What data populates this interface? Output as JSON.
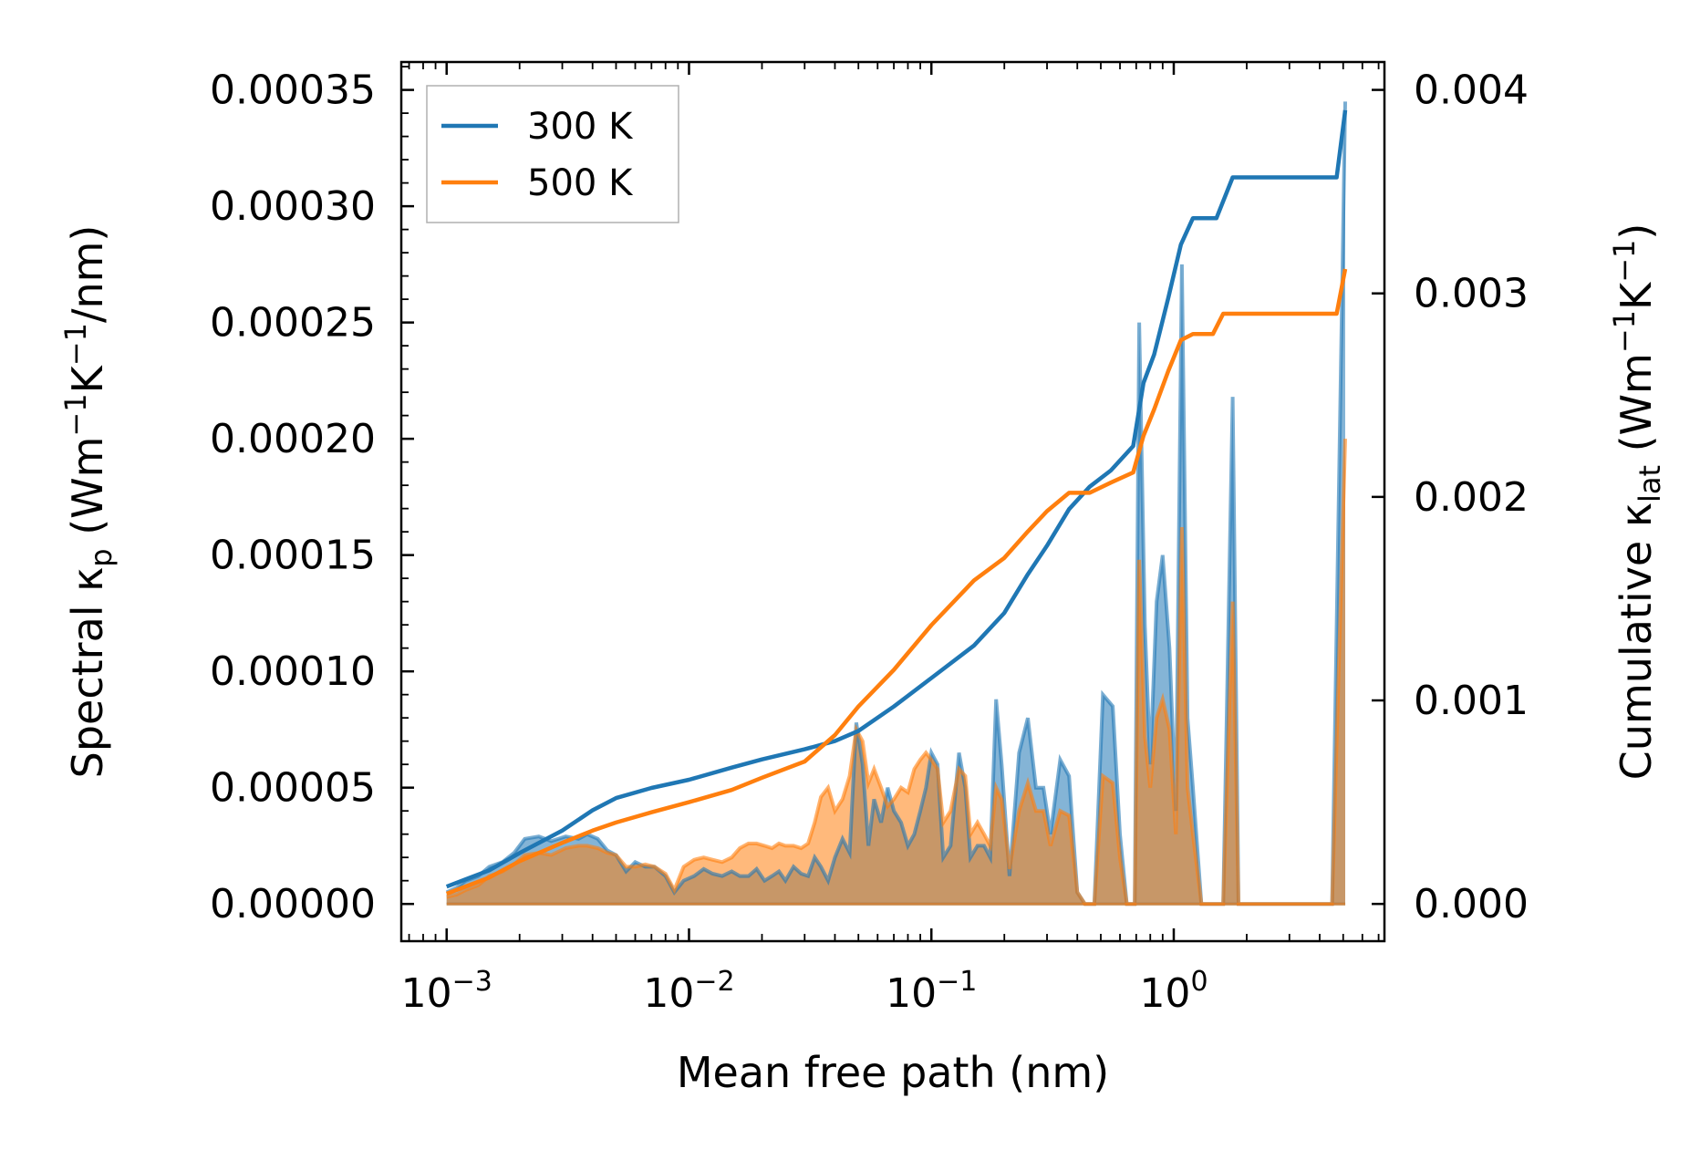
{
  "chart_data": {
    "type": "line+area",
    "xlabel": "Mean free path (nm)",
    "ylabel_left_prefix": "Spectral κ",
    "ylabel_left_sub": "p",
    "ylabel_left_units_parts": [
      " (Wm",
      "−1",
      "K",
      "−1",
      "/nm)"
    ],
    "ylabel_right_prefix": "Cumulative κ",
    "ylabel_right_sub": "lat",
    "ylabel_right_units_parts": [
      " (Wm",
      "−1",
      "K",
      "−1",
      ")"
    ],
    "x_scale": "log",
    "xlim": [
      0.00065,
      7.4
    ],
    "ylim_left": [
      -1.6e-05,
      0.000362
    ],
    "ylim_right": [
      -0.000183,
      0.004137
    ],
    "x_ticks": [
      {
        "value": 0.001,
        "base": "10",
        "exp": "−3"
      },
      {
        "value": 0.01,
        "base": "10",
        "exp": "−2"
      },
      {
        "value": 0.1,
        "base": "10",
        "exp": "−1"
      },
      {
        "value": 1,
        "base": "10",
        "exp": "0"
      }
    ],
    "y_left_ticks": [
      {
        "value": 0,
        "label": "0.00000"
      },
      {
        "value": 5e-05,
        "label": "0.00005"
      },
      {
        "value": 0.0001,
        "label": "0.00010"
      },
      {
        "value": 0.00015,
        "label": "0.00015"
      },
      {
        "value": 0.0002,
        "label": "0.00020"
      },
      {
        "value": 0.00025,
        "label": "0.00025"
      },
      {
        "value": 0.0003,
        "label": "0.00030"
      },
      {
        "value": 0.00035,
        "label": "0.00035"
      }
    ],
    "y_right_ticks": [
      {
        "value": 0,
        "label": "0.000"
      },
      {
        "value": 0.001,
        "label": "0.001"
      },
      {
        "value": 0.002,
        "label": "0.002"
      },
      {
        "value": 0.003,
        "label": "0.003"
      },
      {
        "value": 0.004,
        "label": "0.004"
      }
    ],
    "legend": {
      "position": "upper-left",
      "entries": [
        {
          "label": "300 K",
          "color": "#1f77b4"
        },
        {
          "label": "500 K",
          "color": "#ff7f0e"
        }
      ]
    },
    "series": [
      {
        "name": "300 K",
        "color": "#1f77b4",
        "spectral": [
          [
            0.001,
            5e-06
          ],
          [
            0.0011,
            7e-06
          ],
          [
            0.0012,
            1e-05
          ],
          [
            0.00135,
            1.2e-05
          ],
          [
            0.0015,
            1.6e-05
          ],
          [
            0.0017,
            1.8e-05
          ],
          [
            0.0019,
            2.2e-05
          ],
          [
            0.0021,
            2.8e-05
          ],
          [
            0.0024,
            2.9e-05
          ],
          [
            0.0027,
            2.7e-05
          ],
          [
            0.0031,
            2.9e-05
          ],
          [
            0.0035,
            2.8e-05
          ],
          [
            0.0038,
            3e-05
          ],
          [
            0.0042,
            2.8e-05
          ],
          [
            0.0046,
            2.3e-05
          ],
          [
            0.005,
            2.1e-05
          ],
          [
            0.0055,
            1.4e-05
          ],
          [
            0.006,
            1.8e-05
          ],
          [
            0.0066,
            1.6e-05
          ],
          [
            0.0072,
            1.6e-05
          ],
          [
            0.008,
            1.2e-05
          ],
          [
            0.0087,
            5e-06
          ],
          [
            0.0095,
            1e-05
          ],
          [
            0.0105,
            1.2e-05
          ],
          [
            0.0115,
            1.5e-05
          ],
          [
            0.0125,
            1.3e-05
          ],
          [
            0.0137,
            1.2e-05
          ],
          [
            0.015,
            1.4e-05
          ],
          [
            0.0162,
            1.2e-05
          ],
          [
            0.0176,
            1.2e-05
          ],
          [
            0.019,
            1.5e-05
          ],
          [
            0.0205,
            1e-05
          ],
          [
            0.022,
            1.2e-05
          ],
          [
            0.0235,
            1.4e-05
          ],
          [
            0.025,
            1e-05
          ],
          [
            0.027,
            1.6e-05
          ],
          [
            0.029,
            1.3e-05
          ],
          [
            0.031,
            1.2e-05
          ],
          [
            0.033,
            2e-05
          ],
          [
            0.035,
            1.6e-05
          ],
          [
            0.0375,
            1e-05
          ],
          [
            0.04,
            2e-05
          ],
          [
            0.043,
            2.8e-05
          ],
          [
            0.046,
            2.2e-05
          ],
          [
            0.049,
            7.8e-05
          ],
          [
            0.052,
            6e-05
          ],
          [
            0.055,
            2.5e-05
          ],
          [
            0.058,
            4.5e-05
          ],
          [
            0.062,
            3.5e-05
          ],
          [
            0.066,
            5e-05
          ],
          [
            0.07,
            4e-05
          ],
          [
            0.075,
            3.5e-05
          ],
          [
            0.08,
            2.5e-05
          ],
          [
            0.085,
            3e-05
          ],
          [
            0.09,
            4e-05
          ],
          [
            0.095,
            5e-05
          ],
          [
            0.1,
            6.5e-05
          ],
          [
            0.106,
            6e-05
          ],
          [
            0.112,
            2e-05
          ],
          [
            0.12,
            2.5e-05
          ],
          [
            0.13,
            6.5e-05
          ],
          [
            0.138,
            5e-05
          ],
          [
            0.145,
            2e-05
          ],
          [
            0.155,
            2.5e-05
          ],
          [
            0.165,
            2.5e-05
          ],
          [
            0.175,
            2e-05
          ],
          [
            0.185,
            8.8e-05
          ],
          [
            0.195,
            6e-05
          ],
          [
            0.21,
            1.2e-05
          ],
          [
            0.23,
            6.5e-05
          ],
          [
            0.25,
            8e-05
          ],
          [
            0.27,
            5e-05
          ],
          [
            0.29,
            5e-05
          ],
          [
            0.31,
            3e-05
          ],
          [
            0.34,
            6.2e-05
          ],
          [
            0.37,
            5.5e-05
          ],
          [
            0.4,
            5e-06
          ],
          [
            0.43,
            0.0
          ],
          [
            0.47,
            0.0
          ],
          [
            0.51,
            9e-05
          ],
          [
            0.56,
            8.5e-05
          ],
          [
            0.6,
            3e-05
          ],
          [
            0.64,
            0.0
          ],
          [
            0.69,
            0.0
          ],
          [
            0.72,
            0.00025
          ],
          [
            0.76,
            0.00012
          ],
          [
            0.8,
            6e-05
          ],
          [
            0.85,
            0.00013
          ],
          [
            0.9,
            0.00015
          ],
          [
            0.96,
            0.00011
          ],
          [
            1.02,
            4e-05
          ],
          [
            1.08,
            0.000275
          ],
          [
            1.14,
            8e-05
          ],
          [
            1.2,
            5e-05
          ],
          [
            1.3,
            0.0
          ],
          [
            1.5,
            0.0
          ],
          [
            1.6,
            0.0
          ],
          [
            1.75,
            0.000218
          ],
          [
            1.85,
            0.0
          ],
          [
            2.2,
            0.0
          ],
          [
            4.5,
            0.0
          ],
          [
            5.1,
            0.000345
          ]
        ],
        "cumulative": [
          [
            0.001,
            8.5e-05
          ],
          [
            0.0015,
            0.000165
          ],
          [
            0.002,
            0.00025
          ],
          [
            0.003,
            0.00036
          ],
          [
            0.004,
            0.00046
          ],
          [
            0.005,
            0.00052
          ],
          [
            0.007,
            0.00057
          ],
          [
            0.01,
            0.00061
          ],
          [
            0.015,
            0.00067
          ],
          [
            0.02,
            0.00071
          ],
          [
            0.03,
            0.00076
          ],
          [
            0.04,
            0.0008
          ],
          [
            0.05,
            0.00085
          ],
          [
            0.07,
            0.00097
          ],
          [
            0.1,
            0.00111
          ],
          [
            0.15,
            0.00127
          ],
          [
            0.2,
            0.00143
          ],
          [
            0.25,
            0.00162
          ],
          [
            0.3,
            0.00176
          ],
          [
            0.37,
            0.00194
          ],
          [
            0.45,
            0.00205
          ],
          [
            0.55,
            0.00213
          ],
          [
            0.68,
            0.00225
          ],
          [
            0.75,
            0.00256
          ],
          [
            0.83,
            0.0027
          ],
          [
            0.95,
            0.00298
          ],
          [
            1.07,
            0.00324
          ],
          [
            1.2,
            0.00337
          ],
          [
            1.5,
            0.00337
          ],
          [
            1.75,
            0.00357
          ],
          [
            2.5,
            0.00357
          ],
          [
            4.7,
            0.00357
          ],
          [
            5.1,
            0.0039
          ]
        ]
      },
      {
        "name": "500 K",
        "color": "#ff7f0e",
        "spectral": [
          [
            0.001,
            3e-06
          ],
          [
            0.0011,
            4e-06
          ],
          [
            0.0012,
            6e-06
          ],
          [
            0.00135,
            8e-06
          ],
          [
            0.0015,
            1.2e-05
          ],
          [
            0.0017,
            1.4e-05
          ],
          [
            0.0019,
            1.7e-05
          ],
          [
            0.0021,
            2.1e-05
          ],
          [
            0.0024,
            2.2e-05
          ],
          [
            0.0027,
            2.1e-05
          ],
          [
            0.0031,
            2.4e-05
          ],
          [
            0.0035,
            2.5e-05
          ],
          [
            0.0038,
            2.5e-05
          ],
          [
            0.0042,
            2.4e-05
          ],
          [
            0.0046,
            2.2e-05
          ],
          [
            0.005,
            2.1e-05
          ],
          [
            0.0055,
            1.6e-05
          ],
          [
            0.006,
            1.6e-05
          ],
          [
            0.0066,
            1.7e-05
          ],
          [
            0.0072,
            1.6e-05
          ],
          [
            0.008,
            1.3e-05
          ],
          [
            0.0087,
            6e-06
          ],
          [
            0.0095,
            1.6e-05
          ],
          [
            0.0105,
            1.9e-05
          ],
          [
            0.0115,
            2e-05
          ],
          [
            0.0125,
            1.9e-05
          ],
          [
            0.0137,
            1.8e-05
          ],
          [
            0.015,
            2e-05
          ],
          [
            0.0162,
            2.4e-05
          ],
          [
            0.0176,
            2.6e-05
          ],
          [
            0.019,
            2.6e-05
          ],
          [
            0.0205,
            2.5e-05
          ],
          [
            0.022,
            2.4e-05
          ],
          [
            0.0235,
            2.6e-05
          ],
          [
            0.025,
            2.5e-05
          ],
          [
            0.027,
            2.5e-05
          ],
          [
            0.029,
            2.4e-05
          ],
          [
            0.031,
            2.6e-05
          ],
          [
            0.033,
            3.5e-05
          ],
          [
            0.035,
            4.6e-05
          ],
          [
            0.0375,
            5e-05
          ],
          [
            0.04,
            4e-05
          ],
          [
            0.043,
            4.5e-05
          ],
          [
            0.046,
            5.5e-05
          ],
          [
            0.049,
            7.5e-05
          ],
          [
            0.052,
            7e-05
          ],
          [
            0.055,
            5.2e-05
          ],
          [
            0.058,
            5.8e-05
          ],
          [
            0.062,
            5e-05
          ],
          [
            0.066,
            4.2e-05
          ],
          [
            0.07,
            4.5e-05
          ],
          [
            0.075,
            5e-05
          ],
          [
            0.08,
            4.8e-05
          ],
          [
            0.085,
            5.8e-05
          ],
          [
            0.09,
            6.2e-05
          ],
          [
            0.095,
            6.5e-05
          ],
          [
            0.1,
            6.2e-05
          ],
          [
            0.106,
            5.8e-05
          ],
          [
            0.112,
            3.5e-05
          ],
          [
            0.12,
            4e-05
          ],
          [
            0.13,
            5.8e-05
          ],
          [
            0.138,
            5.5e-05
          ],
          [
            0.145,
            3e-05
          ],
          [
            0.155,
            3.5e-05
          ],
          [
            0.165,
            3e-05
          ],
          [
            0.175,
            2.5e-05
          ],
          [
            0.185,
            5e-05
          ],
          [
            0.195,
            4.5e-05
          ],
          [
            0.21,
            1.5e-05
          ],
          [
            0.23,
            4e-05
          ],
          [
            0.25,
            5.2e-05
          ],
          [
            0.27,
            4e-05
          ],
          [
            0.29,
            4e-05
          ],
          [
            0.31,
            2.5e-05
          ],
          [
            0.34,
            4e-05
          ],
          [
            0.37,
            3.8e-05
          ],
          [
            0.4,
            5e-06
          ],
          [
            0.43,
            0.0
          ],
          [
            0.47,
            0.0
          ],
          [
            0.51,
            5.5e-05
          ],
          [
            0.56,
            5.2e-05
          ],
          [
            0.6,
            2e-05
          ],
          [
            0.64,
            0.0
          ],
          [
            0.69,
            0.0
          ],
          [
            0.72,
            0.000148
          ],
          [
            0.76,
            7.2e-05
          ],
          [
            0.8,
            5e-05
          ],
          [
            0.85,
            8e-05
          ],
          [
            0.9,
            8.8e-05
          ],
          [
            0.96,
            7.5e-05
          ],
          [
            1.02,
            3e-05
          ],
          [
            1.08,
            0.000162
          ],
          [
            1.14,
            5e-05
          ],
          [
            1.2,
            3e-05
          ],
          [
            1.3,
            0.0
          ],
          [
            1.5,
            0.0
          ],
          [
            1.6,
            0.0
          ],
          [
            1.75,
            0.00013
          ],
          [
            1.85,
            0.0
          ],
          [
            2.2,
            0.0
          ],
          [
            4.5,
            0.0
          ],
          [
            5.1,
            0.0002
          ]
        ],
        "cumulative": [
          [
            0.001,
            5e-05
          ],
          [
            0.0015,
            0.00013
          ],
          [
            0.002,
            0.00021
          ],
          [
            0.003,
            0.0003
          ],
          [
            0.004,
            0.00036
          ],
          [
            0.005,
            0.0004
          ],
          [
            0.007,
            0.00045
          ],
          [
            0.01,
            0.0005
          ],
          [
            0.015,
            0.00056
          ],
          [
            0.02,
            0.00062
          ],
          [
            0.03,
            0.0007
          ],
          [
            0.04,
            0.00083
          ],
          [
            0.05,
            0.00097
          ],
          [
            0.07,
            0.00115
          ],
          [
            0.1,
            0.00137
          ],
          [
            0.15,
            0.00159
          ],
          [
            0.2,
            0.0017
          ],
          [
            0.25,
            0.00183
          ],
          [
            0.3,
            0.00193
          ],
          [
            0.37,
            0.00202
          ],
          [
            0.45,
            0.00202
          ],
          [
            0.55,
            0.00207
          ],
          [
            0.68,
            0.00212
          ],
          [
            0.75,
            0.0023
          ],
          [
            0.83,
            0.00243
          ],
          [
            0.95,
            0.00262
          ],
          [
            1.07,
            0.00277
          ],
          [
            1.2,
            0.0028
          ],
          [
            1.45,
            0.0028
          ],
          [
            1.6,
            0.0029
          ],
          [
            2.5,
            0.0029
          ],
          [
            4.7,
            0.0029
          ],
          [
            5.1,
            0.00312
          ]
        ]
      }
    ]
  }
}
